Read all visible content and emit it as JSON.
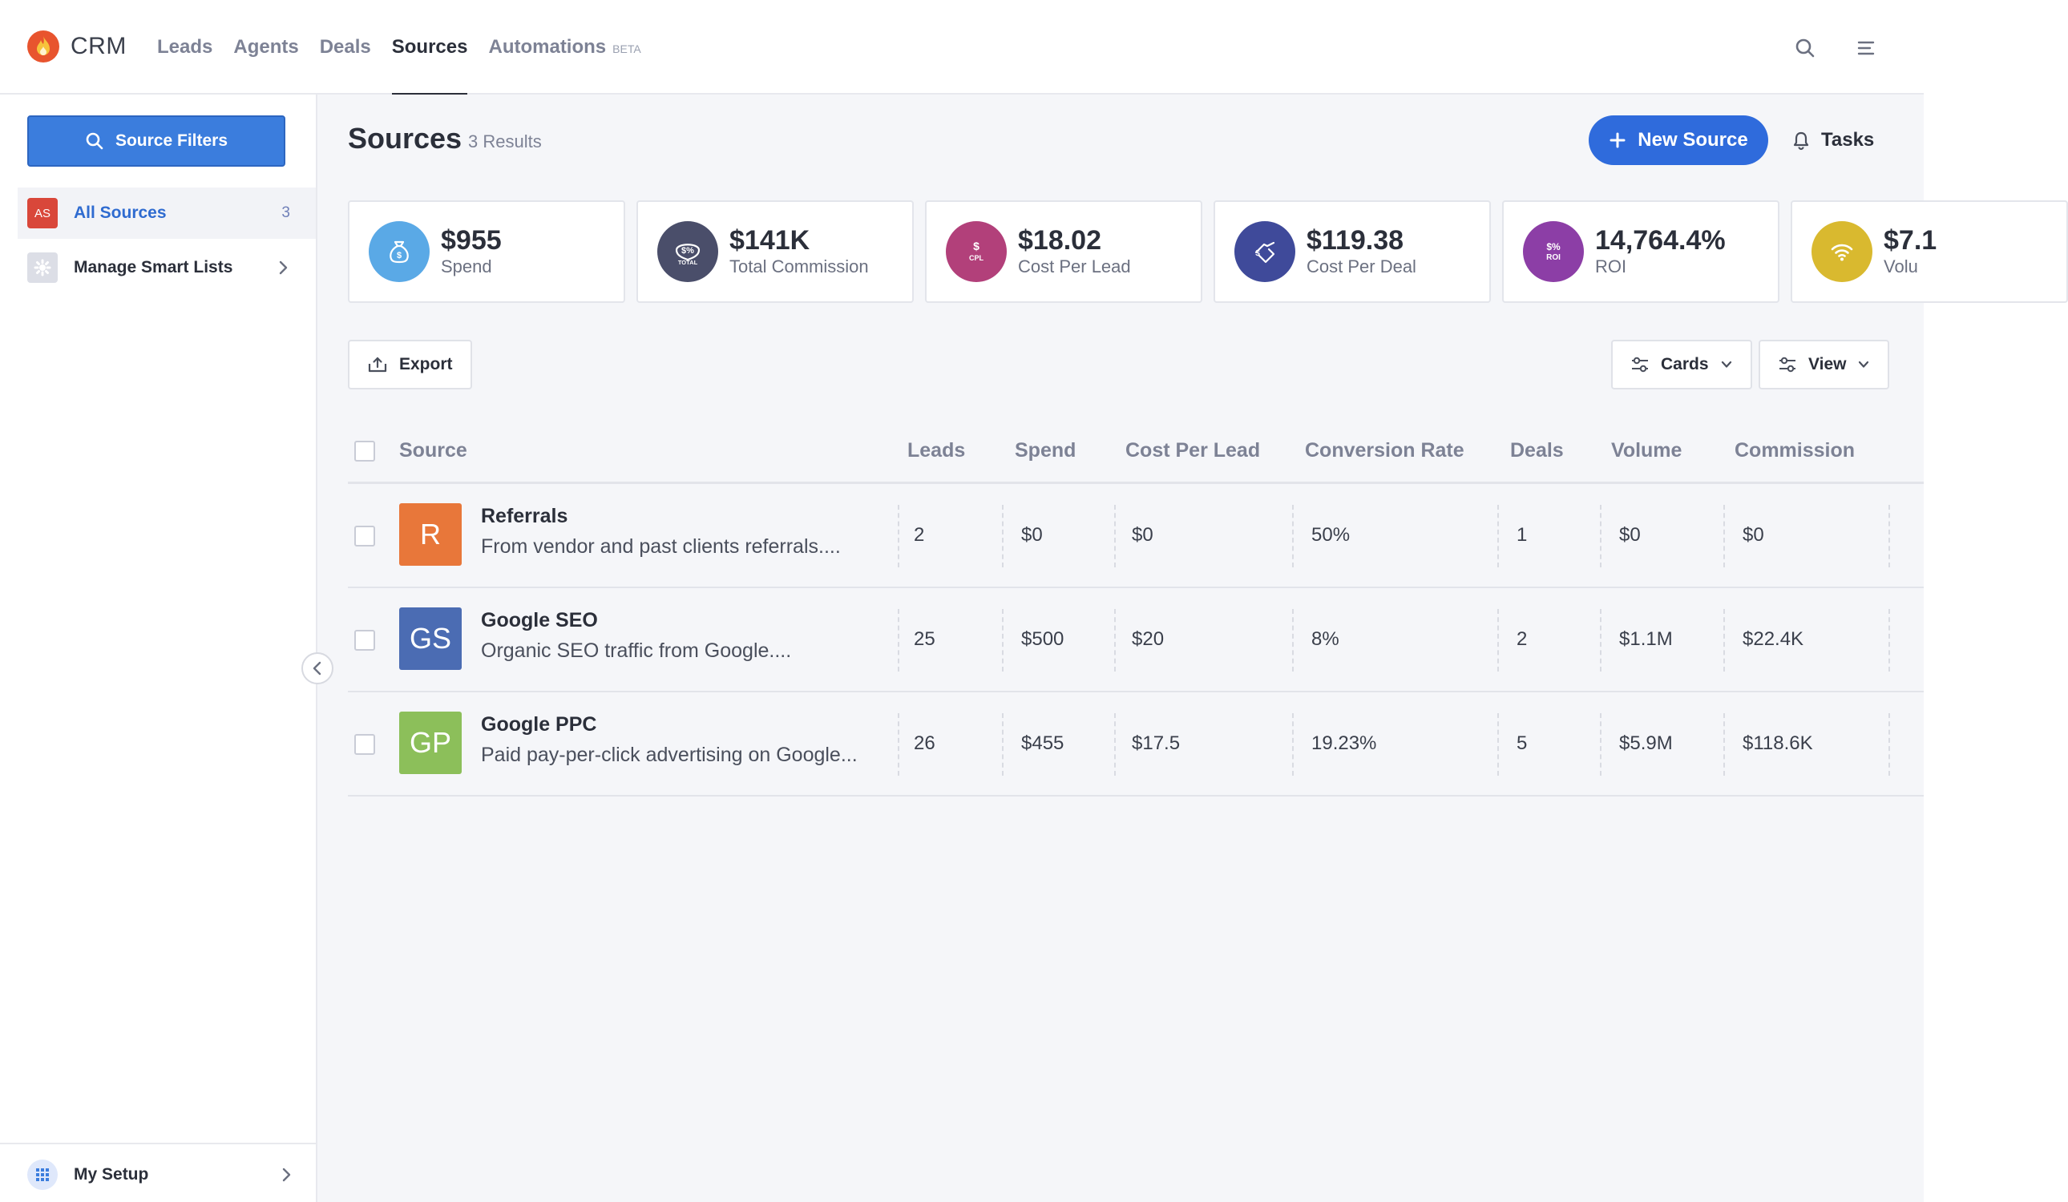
{
  "app": {
    "name": "CRM"
  },
  "nav": {
    "items": [
      {
        "label": "Leads"
      },
      {
        "label": "Agents"
      },
      {
        "label": "Deals"
      },
      {
        "label": "Sources"
      },
      {
        "label": "Automations",
        "badge": "BETA"
      }
    ],
    "active": "Sources"
  },
  "sidebar": {
    "filter_button": "Source Filters",
    "items": [
      {
        "badge": "AS",
        "label": "All Sources",
        "count": "3"
      },
      {
        "label": "Manage Smart Lists"
      }
    ],
    "footer": {
      "label": "My Setup"
    }
  },
  "header": {
    "title": "Sources",
    "count": "3 Results",
    "new_button": "New Source",
    "tasks_button": "Tasks"
  },
  "stats": [
    {
      "value": "$955",
      "label": "Spend",
      "color": "#5aa9e6",
      "icon": "money-bag-icon"
    },
    {
      "value": "$141K",
      "label": "Total Commission",
      "color": "#4a4e6a",
      "icon": "total-commission-icon",
      "icon_text": "TOTAL"
    },
    {
      "value": "$18.02",
      "label": "Cost Per Lead",
      "color": "#b2407a",
      "icon": "cpl-icon",
      "icon_text": "CPL"
    },
    {
      "value": "$119.38",
      "label": "Cost Per Deal",
      "color": "#3f4a9a",
      "icon": "handshake-icon"
    },
    {
      "value": "14,764.4%",
      "label": "ROI",
      "color": "#8c3ea6",
      "icon": "roi-icon",
      "icon_text": "ROI"
    },
    {
      "value": "$7.1",
      "label": "Volu",
      "color": "#d9b92f",
      "icon": "signal-icon"
    }
  ],
  "toolbar": {
    "export": "Export",
    "cards": "Cards",
    "view": "View"
  },
  "table": {
    "columns": [
      "Source",
      "Leads",
      "Spend",
      "Cost Per Lead",
      "Conversion Rate",
      "Deals",
      "Volume",
      "Commission"
    ],
    "rows": [
      {
        "initials": "R",
        "color": "#e8773a",
        "name": "Referrals",
        "desc": "From vendor and past clients referrals....",
        "leads": "2",
        "spend": "$0",
        "cpl": "$0",
        "conv": "50%",
        "deals": "1",
        "volume": "$0",
        "commission": "$0"
      },
      {
        "initials": "GS",
        "color": "#4b6cb3",
        "name": "Google SEO",
        "desc": "Organic SEO traffic from Google....",
        "leads": "25",
        "spend": "$500",
        "cpl": "$20",
        "conv": "8%",
        "deals": "2",
        "volume": "$1.1M",
        "commission": "$22.4K"
      },
      {
        "initials": "GP",
        "color": "#8cbf5a",
        "name": "Google PPC",
        "desc": "Paid pay-per-click advertising on Google...",
        "leads": "26",
        "spend": "$455",
        "cpl": "$17.5",
        "conv": "19.23%",
        "deals": "5",
        "volume": "$5.9M",
        "commission": "$118.6K"
      }
    ]
  }
}
